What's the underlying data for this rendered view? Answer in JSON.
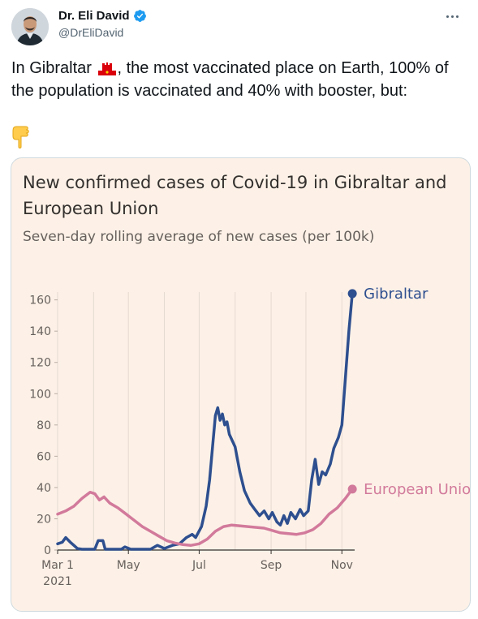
{
  "tweet": {
    "author": {
      "display_name": "Dr. Eli David",
      "handle": "@DrEliDavid",
      "verified": true
    },
    "text_before_flag": "In Gibraltar",
    "text_after_flag": ", the most vaccinated place on Earth, 100% of the population is vaccinated and 40% with booster, but:",
    "emoji": [
      "gibraltar-flag-emoji",
      "pointing-down-emoji"
    ]
  },
  "icons": {
    "verified": "verified-badge-icon",
    "more": "more-options-icon"
  },
  "colors": {
    "card_background": "#fdf1e7",
    "gibraltar_series": "#2e4f8f",
    "eu_series": "#d27a9b",
    "text_dark": "#33302e",
    "text_muted": "#66605c"
  },
  "chart_data": {
    "type": "line",
    "title": "New confirmed cases of Covid-19 in Gibraltar and European Union",
    "subtitle": "Seven-day rolling average of new cases (per 100k)",
    "xlabel": "",
    "ylabel": "",
    "ylim": [
      0,
      165
    ],
    "yticks": [
      0,
      20,
      40,
      60,
      80,
      100,
      120,
      140,
      160
    ],
    "xticks": [
      {
        "date": "2021-03-01",
        "label": "Mar 1",
        "sublabel": "2021"
      },
      {
        "date": "2021-05-01",
        "label": "May"
      },
      {
        "date": "2021-07-01",
        "label": "Jul"
      },
      {
        "date": "2021-09-01",
        "label": "Sep"
      },
      {
        "date": "2021-11-01",
        "label": "Nov"
      }
    ],
    "x_range": [
      "2021-03-01",
      "2021-11-12"
    ],
    "grid": "vertical",
    "series": [
      {
        "name": "Gibraltar",
        "points": [
          [
            "2021-03-01",
            4
          ],
          [
            "2021-03-05",
            5
          ],
          [
            "2021-03-08",
            8
          ],
          [
            "2021-03-12",
            5
          ],
          [
            "2021-03-15",
            3
          ],
          [
            "2021-03-18",
            1
          ],
          [
            "2021-03-22",
            0.5
          ],
          [
            "2021-03-26",
            0.5
          ],
          [
            "2021-03-30",
            0.5
          ],
          [
            "2021-04-02",
            0.5
          ],
          [
            "2021-04-05",
            6
          ],
          [
            "2021-04-09",
            6
          ],
          [
            "2021-04-11",
            0.5
          ],
          [
            "2021-04-25",
            0.5
          ],
          [
            "2021-04-28",
            2
          ],
          [
            "2021-05-03",
            0.5
          ],
          [
            "2021-05-20",
            0.5
          ],
          [
            "2021-05-26",
            3
          ],
          [
            "2021-06-01",
            1
          ],
          [
            "2021-06-08",
            3
          ],
          [
            "2021-06-14",
            4
          ],
          [
            "2021-06-20",
            8
          ],
          [
            "2021-06-25",
            10
          ],
          [
            "2021-06-28",
            8
          ],
          [
            "2021-07-03",
            15
          ],
          [
            "2021-07-07",
            28
          ],
          [
            "2021-07-10",
            45
          ],
          [
            "2021-07-13",
            70
          ],
          [
            "2021-07-15",
            86
          ],
          [
            "2021-07-17",
            91
          ],
          [
            "2021-07-19",
            83
          ],
          [
            "2021-07-21",
            87
          ],
          [
            "2021-07-23",
            80
          ],
          [
            "2021-07-25",
            82
          ],
          [
            "2021-07-27",
            74
          ],
          [
            "2021-08-01",
            66
          ],
          [
            "2021-08-05",
            50
          ],
          [
            "2021-08-09",
            38
          ],
          [
            "2021-08-14",
            30
          ],
          [
            "2021-08-18",
            26
          ],
          [
            "2021-08-22",
            22
          ],
          [
            "2021-08-26",
            25
          ],
          [
            "2021-08-30",
            20
          ],
          [
            "2021-09-02",
            24
          ],
          [
            "2021-09-06",
            18
          ],
          [
            "2021-09-09",
            16
          ],
          [
            "2021-09-12",
            22
          ],
          [
            "2021-09-15",
            17
          ],
          [
            "2021-09-18",
            24
          ],
          [
            "2021-09-22",
            20
          ],
          [
            "2021-09-26",
            26
          ],
          [
            "2021-09-29",
            22
          ],
          [
            "2021-10-03",
            25
          ],
          [
            "2021-10-06",
            45
          ],
          [
            "2021-10-09",
            58
          ],
          [
            "2021-10-12",
            42
          ],
          [
            "2021-10-15",
            50
          ],
          [
            "2021-10-18",
            48
          ],
          [
            "2021-10-22",
            55
          ],
          [
            "2021-10-25",
            65
          ],
          [
            "2021-10-29",
            72
          ],
          [
            "2021-11-01",
            80
          ],
          [
            "2021-11-04",
            110
          ],
          [
            "2021-11-07",
            140
          ],
          [
            "2021-11-10",
            164
          ]
        ]
      },
      {
        "name": "European Union",
        "points": [
          [
            "2021-03-01",
            23
          ],
          [
            "2021-03-08",
            25
          ],
          [
            "2021-03-15",
            28
          ],
          [
            "2021-03-22",
            33
          ],
          [
            "2021-03-29",
            37
          ],
          [
            "2021-04-02",
            36
          ],
          [
            "2021-04-06",
            32
          ],
          [
            "2021-04-10",
            34
          ],
          [
            "2021-04-15",
            30
          ],
          [
            "2021-04-22",
            27
          ],
          [
            "2021-04-29",
            23
          ],
          [
            "2021-05-06",
            19
          ],
          [
            "2021-05-13",
            15
          ],
          [
            "2021-05-20",
            12
          ],
          [
            "2021-05-27",
            9
          ],
          [
            "2021-06-03",
            6
          ],
          [
            "2021-06-10",
            4.5
          ],
          [
            "2021-06-17",
            3.5
          ],
          [
            "2021-06-24",
            3
          ],
          [
            "2021-07-01",
            4
          ],
          [
            "2021-07-08",
            7
          ],
          [
            "2021-07-15",
            12
          ],
          [
            "2021-07-22",
            15
          ],
          [
            "2021-07-29",
            16
          ],
          [
            "2021-08-12",
            15
          ],
          [
            "2021-08-26",
            14
          ],
          [
            "2021-09-09",
            11
          ],
          [
            "2021-09-23",
            10
          ],
          [
            "2021-09-30",
            11
          ],
          [
            "2021-10-07",
            13
          ],
          [
            "2021-10-14",
            17
          ],
          [
            "2021-10-21",
            23
          ],
          [
            "2021-10-28",
            27
          ],
          [
            "2021-11-04",
            33
          ],
          [
            "2021-11-10",
            39
          ]
        ]
      }
    ]
  }
}
